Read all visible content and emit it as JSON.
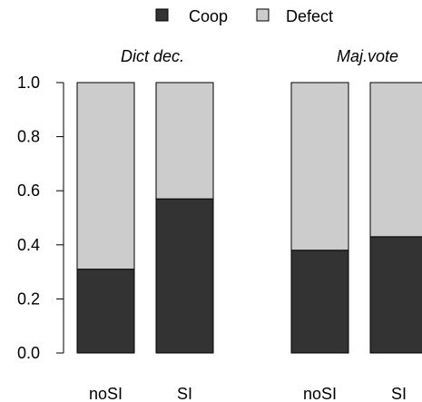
{
  "chart_data": {
    "type": "bar",
    "stacked": true,
    "proportions": true,
    "legend": {
      "position": "top",
      "entries": [
        {
          "label": "Coop",
          "color": "#333333"
        },
        {
          "label": "Defect",
          "color": "#cccccc"
        }
      ]
    },
    "ylim": [
      0,
      1
    ],
    "yticks": [
      "0.0",
      "0.2",
      "0.4",
      "0.6",
      "0.8",
      "1.0"
    ],
    "panels": [
      {
        "title": "Dict dec.",
        "categories": [
          "noSI",
          "SI"
        ],
        "series": [
          {
            "name": "Coop",
            "values": [
              0.31,
              0.57
            ]
          },
          {
            "name": "Defect",
            "values": [
              0.69,
              0.43
            ]
          }
        ]
      },
      {
        "title": "Maj.vote",
        "categories": [
          "noSI",
          "SI"
        ],
        "series": [
          {
            "name": "Coop",
            "values": [
              0.38,
              0.43
            ]
          },
          {
            "name": "Defect",
            "values": [
              0.62,
              0.57
            ]
          }
        ]
      }
    ]
  }
}
